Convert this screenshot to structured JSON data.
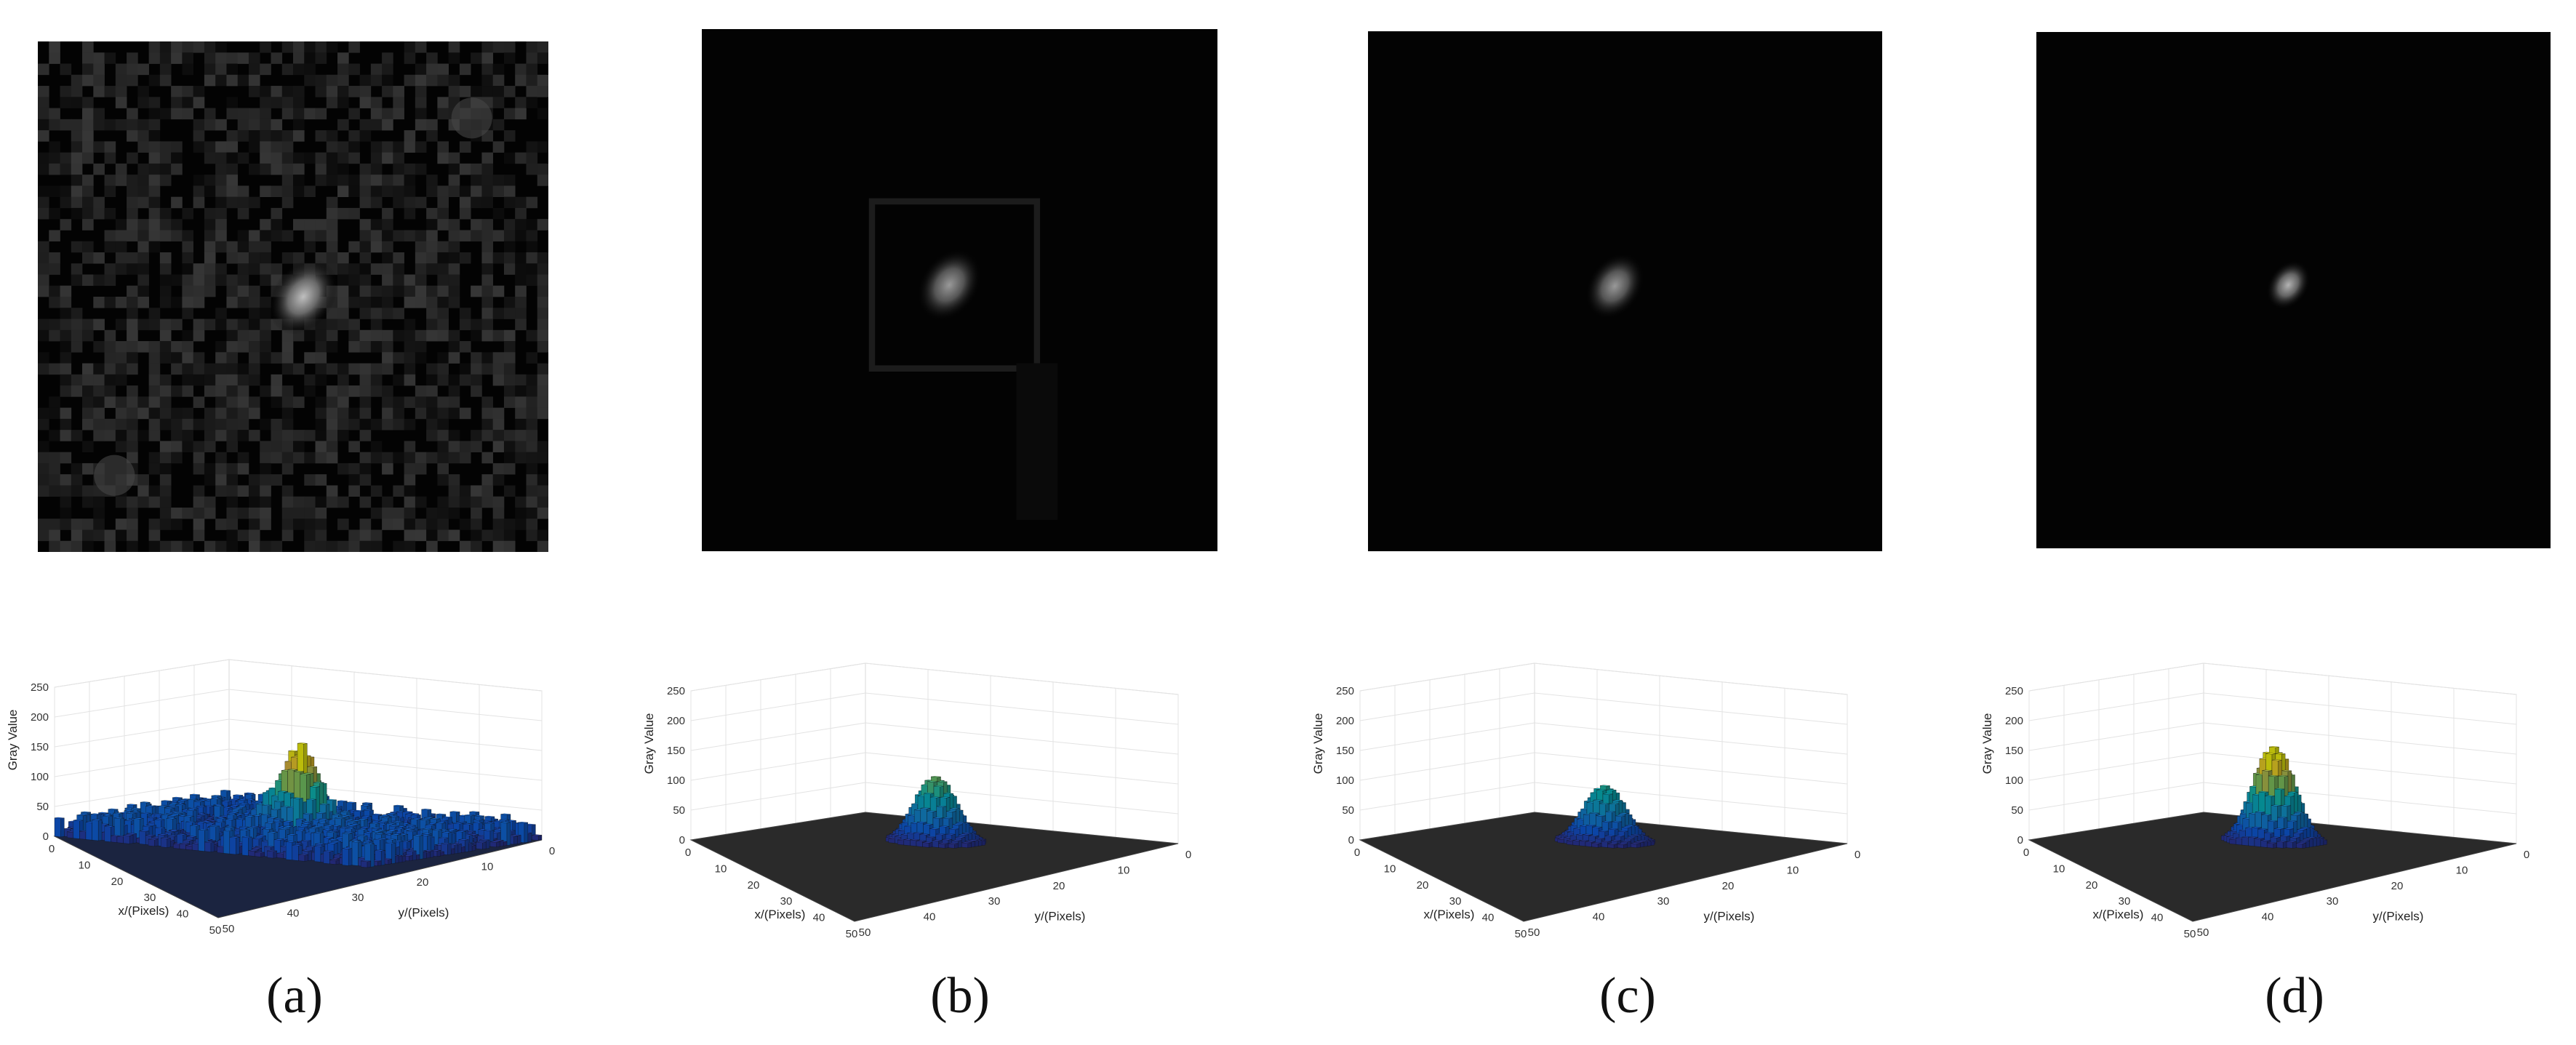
{
  "panels": [
    {
      "id": "a",
      "caption": "(a)",
      "image_kind": "noisy",
      "spot_brightness": 0.75
    },
    {
      "id": "b",
      "caption": "(b)",
      "image_kind": "frame",
      "spot_brightness": 0.6
    },
    {
      "id": "c",
      "caption": "(c)",
      "image_kind": "clean",
      "spot_brightness": 0.6
    },
    {
      "id": "d",
      "caption": "(d)",
      "image_kind": "clean_small",
      "spot_brightness": 0.7
    }
  ],
  "chart_data": [
    {
      "type": "bar3d",
      "panel": "a",
      "zlabel": "Gray Value",
      "xlabel": "x/(Pixels)",
      "ylabel": "y/(Pixels)",
      "z_ticks": [
        "0",
        "50",
        "100",
        "150",
        "200",
        "250"
      ],
      "zlim": [
        0,
        250
      ],
      "x_ticks": [
        "0",
        "10",
        "20",
        "30",
        "40",
        "50"
      ],
      "y_ticks": [
        "0",
        "10",
        "20",
        "30",
        "40",
        "50"
      ],
      "peak": 140,
      "background": 40
    },
    {
      "type": "bar3d",
      "panel": "b",
      "zlabel": "Gray Value",
      "xlabel": "x/(Pixels)",
      "ylabel": "y/(Pixels)",
      "z_ticks": [
        "0",
        "50",
        "100",
        "150",
        "200",
        "250"
      ],
      "zlim": [
        0,
        250
      ],
      "x_ticks": [
        "0",
        "10",
        "20",
        "30",
        "40",
        "50"
      ],
      "y_ticks": [
        "0",
        "10",
        "20",
        "30",
        "40",
        "50"
      ],
      "peak": 110,
      "background": 0
    },
    {
      "type": "bar3d",
      "panel": "c",
      "zlabel": "Gray Value",
      "xlabel": "x/(Pixels)",
      "ylabel": "y/(Pixels)",
      "z_ticks": [
        "0",
        "50",
        "100",
        "150",
        "200",
        "250"
      ],
      "zlim": [
        0,
        250
      ],
      "x_ticks": [
        "0",
        "10",
        "20",
        "30",
        "40",
        "50"
      ],
      "y_ticks": [
        "0",
        "10",
        "20",
        "30",
        "40",
        "50"
      ],
      "peak": 95,
      "background": 0
    },
    {
      "type": "bar3d",
      "panel": "d",
      "zlabel": "Gray Value",
      "xlabel": "x/(Pixels)",
      "ylabel": "y/(Pixels)",
      "z_ticks": [
        "0",
        "50",
        "100",
        "150",
        "200",
        "250"
      ],
      "zlim": [
        0,
        250
      ],
      "x_ticks": [
        "0",
        "10",
        "20",
        "30",
        "40",
        "50"
      ],
      "y_ticks": [
        "0",
        "10",
        "20",
        "30",
        "40",
        "50"
      ],
      "peak": 160,
      "background": 0
    }
  ]
}
